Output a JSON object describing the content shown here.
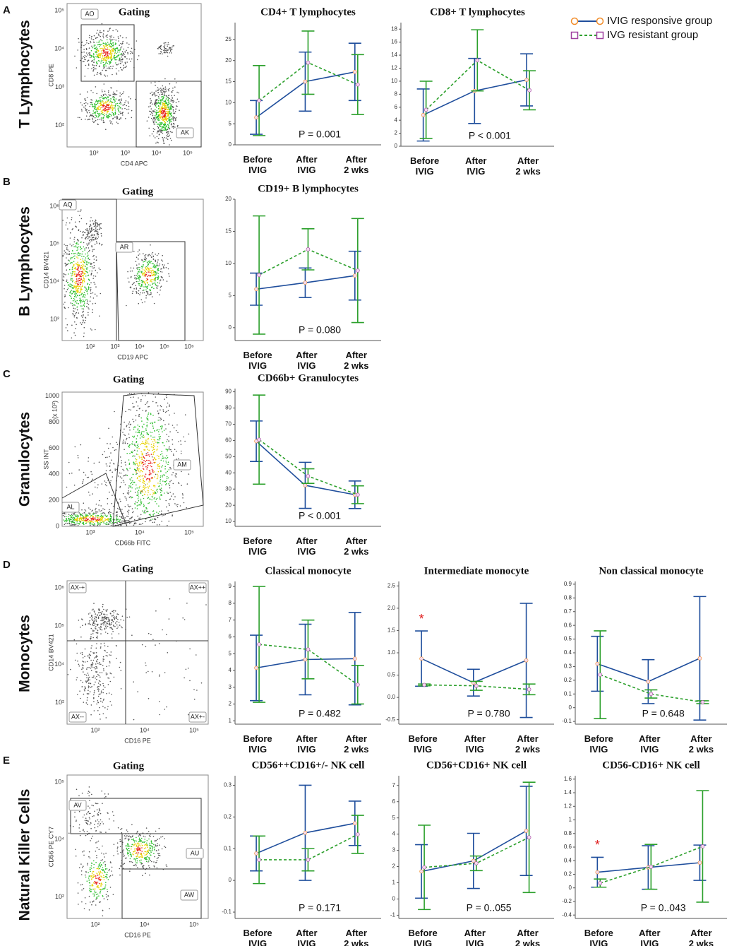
{
  "legend": [
    {
      "name": "IVIG responsive group",
      "color": "#1f4e9c",
      "marker_color": "#f28c28",
      "dash": false
    },
    {
      "name": "IVG resistant group",
      "color": "#2ca02c",
      "marker_color": "#a040a0",
      "dash": true
    }
  ],
  "panels": [
    {
      "letter": "A",
      "row_label": "T Lymphocytes"
    },
    {
      "letter": "B",
      "row_label": "B Lymphocytes"
    },
    {
      "letter": "C",
      "row_label": "Granulocytes"
    },
    {
      "letter": "D",
      "row_label": "Monocytes"
    },
    {
      "letter": "E",
      "row_label": "Natural Killer Cells"
    }
  ],
  "gating": [
    {
      "title": "Gating",
      "x_label": "CD4 APC",
      "y_label": "CD8 PE",
      "gates": [
        "AO",
        "AK"
      ],
      "xtick_labels": [
        "10²",
        "10³",
        "10⁴",
        "10⁵"
      ],
      "ytick_labels": [
        "10²",
        "10³",
        "10⁴",
        "10⁵"
      ]
    },
    {
      "title": "Gating",
      "x_label": "CD19 APC",
      "y_label": "CD14 BV421",
      "gates": [
        "AQ",
        "AR"
      ],
      "xtick_labels": [
        "10²",
        "10³",
        "10⁴",
        "10⁵",
        "10⁶"
      ],
      "ytick_labels": [
        "10²",
        "10⁴",
        "10⁵",
        "10⁶"
      ]
    },
    {
      "title": "Gating",
      "x_label": "CD66b FITC",
      "y_label": "SS INT",
      "y_unit": "(x 10³)",
      "gates": [
        "AL",
        "AM"
      ],
      "xtick_labels": [
        "10³",
        "10⁴",
        "10⁵"
      ],
      "ytick_labels": [
        "0",
        "200",
        "400",
        "600",
        "800",
        "1000"
      ]
    },
    {
      "title": "Gating",
      "x_label": "CD16 PE",
      "y_label": "CD14 BV421",
      "gates": [
        "AX-+",
        "AX++",
        "AX--",
        "AX+-"
      ],
      "xtick_labels": [
        "10²",
        "10⁴",
        "10⁵"
      ],
      "ytick_labels": [
        "10²",
        "10⁴",
        "10⁵",
        "10⁶"
      ]
    },
    {
      "title": "Gating",
      "x_label": "CD16 PE",
      "y_label": "CD56 PE CY7",
      "gates": [
        "AV",
        "AU",
        "AW"
      ],
      "xtick_labels": [
        "10²",
        "10⁴",
        "10⁵"
      ],
      "ytick_labels": [
        "10²",
        "10⁴",
        "10⁵"
      ]
    }
  ],
  "chart_data": [
    {
      "type": "line",
      "title": "CD4+  T lymphocytes",
      "categories": [
        "Before IVIG",
        "After IVIG",
        "After 2 wks"
      ],
      "annotation": "P = 0.001",
      "ylim": [
        0,
        29
      ],
      "yticks": [
        0,
        5,
        10,
        15,
        20,
        25
      ],
      "series": [
        {
          "values": [
            6.5,
            15,
            17.3
          ],
          "errors": [
            4,
            7,
            6.8
          ]
        },
        {
          "values": [
            10.5,
            19.5,
            14.3
          ],
          "errors": [
            8.3,
            7.5,
            7.1
          ]
        }
      ]
    },
    {
      "type": "line",
      "title": "CD8+ T lymphocytes",
      "categories": [
        "Before IVIG",
        "After IVIG",
        "After 2 wks"
      ],
      "annotation": "P < 0.001",
      "ylim": [
        0,
        19
      ],
      "yticks": [
        0,
        2,
        4,
        6,
        8,
        10,
        12,
        14,
        16,
        18
      ],
      "series": [
        {
          "values": [
            4.8,
            8.5,
            10.2
          ],
          "errors": [
            4,
            5,
            4
          ]
        },
        {
          "values": [
            5.6,
            13.2,
            8.6
          ],
          "errors": [
            4.4,
            4.7,
            3
          ]
        }
      ]
    },
    {
      "type": "line",
      "title": "CD19+ B lymphocytes",
      "categories": [
        "Before IVIG",
        "After IVIG",
        "After 2 wks"
      ],
      "annotation": "P = 0.080",
      "ylim": [
        -2,
        20
      ],
      "yticks": [
        0,
        5,
        10,
        15,
        20
      ],
      "series": [
        {
          "values": [
            6,
            7,
            8.1
          ],
          "errors": [
            2.5,
            2.3,
            3.8
          ]
        },
        {
          "values": [
            8.2,
            12.2,
            8.9
          ],
          "errors": [
            9.2,
            3.2,
            8.1
          ]
        }
      ]
    },
    {
      "type": "line",
      "title": "CD66b+ Granulocytes",
      "categories": [
        "Before IVIG",
        "After IVIG",
        "After 2 wks"
      ],
      "annotation": "P < 0.001",
      "ylim": [
        7,
        92
      ],
      "yticks": [
        10,
        20,
        30,
        40,
        50,
        60,
        70,
        80,
        90
      ],
      "series": [
        {
          "values": [
            59.5,
            32.3,
            26.5
          ],
          "errors": [
            12.5,
            14.2,
            8.5
          ]
        },
        {
          "values": [
            60.5,
            38,
            26.5
          ],
          "errors": [
            27.5,
            4.5,
            5.5
          ]
        }
      ]
    },
    {
      "type": "line",
      "title": "Classical monocyte",
      "categories": [
        "Before IVIG",
        "After IVIG",
        "After 2 wks"
      ],
      "annotation": "P = 0.482",
      "ylim": [
        0.8,
        9.3
      ],
      "yticks": [
        1,
        2,
        3,
        4,
        5,
        6,
        7,
        8,
        9
      ],
      "series": [
        {
          "values": [
            4.15,
            4.65,
            4.7
          ],
          "errors": [
            1.95,
            2.1,
            2.75
          ]
        },
        {
          "values": [
            5.55,
            5.25,
            3.15
          ],
          "errors": [
            3.45,
            1.75,
            1.15
          ]
        }
      ]
    },
    {
      "type": "line",
      "title": "Intermediate monocyte",
      "categories": [
        "Before IVIG",
        "After IVIG",
        "After 2 wks"
      ],
      "annotation": "P = 0.780",
      "asterisk": "*",
      "ylim": [
        -0.6,
        2.6
      ],
      "yticks": [
        -0.5,
        {
          "value": 0,
          "label": "0.0"
        },
        0.5,
        {
          "value": 1,
          "label": "1.0"
        },
        1.5,
        {
          "value": 2,
          "label": "2.0"
        },
        2.5
      ],
      "series": [
        {
          "values": [
            0.87,
            0.33,
            0.83
          ],
          "errors": [
            0.62,
            0.3,
            1.28
          ]
        },
        {
          "values": [
            0.28,
            0.26,
            0.18
          ],
          "errors": [
            0.02,
            0.1,
            0.12
          ]
        }
      ]
    },
    {
      "type": "line",
      "title": "Non classical monocyte",
      "categories": [
        "Before IVIG",
        "After IVIG",
        "After 2 wks"
      ],
      "annotation": "P = 0.648",
      "ylim": [
        -0.12,
        0.92
      ],
      "yticks": [
        -0.1,
        0,
        0.1,
        0.2,
        0.3,
        0.4,
        0.5,
        0.6,
        0.7,
        0.8,
        0.9
      ],
      "series": [
        {
          "values": [
            0.32,
            0.19,
            0.36
          ],
          "errors": [
            0.2,
            0.16,
            0.45
          ]
        },
        {
          "values": [
            0.24,
            0.1,
            0.04
          ],
          "errors": [
            0.32,
            0.03,
            0.01
          ]
        }
      ]
    },
    {
      "type": "line",
      "title": "CD56++CD16+/- NK cell",
      "categories": [
        "Before IVIG",
        "After IVIG",
        "After 2 wks"
      ],
      "annotation": "P = 0.171",
      "ylim": [
        -0.12,
        0.33
      ],
      "yticks": [
        -0.1,
        0,
        0.1,
        0.2,
        0.3
      ],
      "series": [
        {
          "values": [
            0.085,
            0.15,
            0.18
          ],
          "errors": [
            0.055,
            0.15,
            0.07
          ]
        },
        {
          "values": [
            0.065,
            0.065,
            0.145
          ],
          "errors": [
            0.075,
            0.035,
            0.06
          ]
        }
      ]
    },
    {
      "type": "line",
      "title": "CD56+CD16+ NK cell",
      "categories": [
        "Before IVIG",
        "After IVIG",
        "After 2 wks"
      ],
      "annotation": "P = 0..055",
      "ylim": [
        -1.2,
        7.6
      ],
      "yticks": [
        -1,
        0,
        1,
        2,
        3,
        4,
        5,
        6,
        7
      ],
      "series": [
        {
          "values": [
            1.7,
            2.35,
            4.2
          ],
          "errors": [
            1.65,
            1.7,
            2.75
          ]
        },
        {
          "values": [
            1.95,
            2.2,
            3.8
          ],
          "errors": [
            2.6,
            0.45,
            3.4
          ]
        }
      ]
    },
    {
      "type": "line",
      "title": "CD56-CD16+ NK cell",
      "categories": [
        "Before IVIG",
        "After IVIG",
        "After 2 wks"
      ],
      "annotation": "P = 0..043",
      "asterisk": "*",
      "ylim": [
        -0.45,
        1.65
      ],
      "yticks": [
        -0.4,
        -0.2,
        0,
        0.2,
        0.4,
        0.6,
        0.8,
        1,
        1.2,
        1.4,
        1.6
      ],
      "series": [
        {
          "values": [
            0.23,
            0.3,
            0.37
          ],
          "errors": [
            0.22,
            0.32,
            0.26
          ]
        },
        {
          "values": [
            0.07,
            0.31,
            0.61
          ],
          "errors": [
            0.06,
            0.33,
            0.82
          ]
        }
      ]
    }
  ]
}
